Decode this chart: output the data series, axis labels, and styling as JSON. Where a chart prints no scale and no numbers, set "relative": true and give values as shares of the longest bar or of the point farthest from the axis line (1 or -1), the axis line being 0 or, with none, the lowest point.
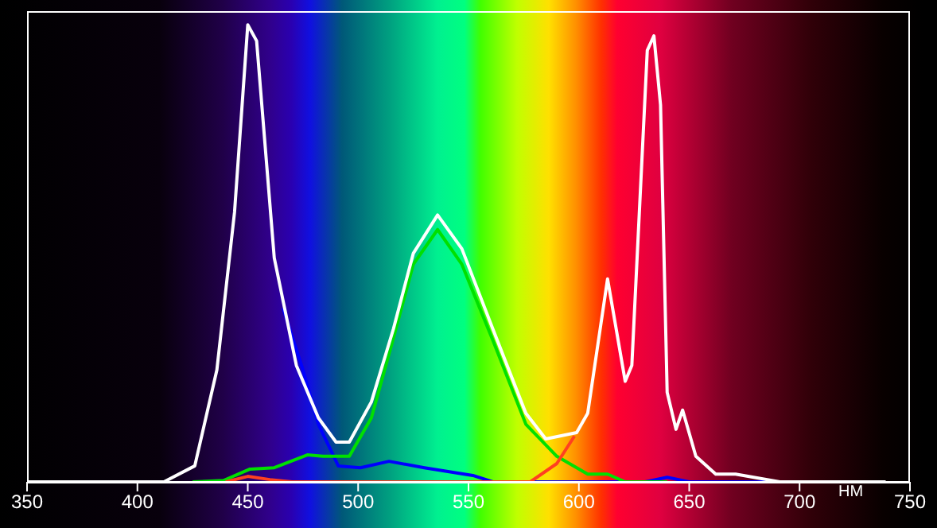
{
  "chart_data": {
    "type": "line",
    "relative": true,
    "xlabel": "НМ",
    "xlim": [
      350,
      750
    ],
    "xticks": [
      350,
      400,
      450,
      500,
      550,
      600,
      650,
      700,
      750
    ],
    "marker": "none",
    "line_style": "solid",
    "series": [
      {
        "color": "#0000ff",
        "x": [
          466,
          475,
          482,
          491,
          501,
          514,
          530,
          552,
          561,
          600,
          630,
          640,
          650,
          705
        ],
        "values": [
          0.38,
          0.245,
          0.126,
          0.035,
          0.031,
          0.045,
          0.031,
          0.014,
          0,
          0,
          0,
          0.01,
          0,
          0
        ]
      },
      {
        "color": "#00e000",
        "x": [
          425,
          439,
          451,
          462,
          477,
          484,
          496,
          506,
          516,
          525,
          536,
          547,
          561,
          576,
          590,
          604,
          613,
          621,
          640
        ],
        "values": [
          0,
          0.003,
          0.028,
          0.031,
          0.059,
          0.056,
          0.056,
          0.14,
          0.315,
          0.476,
          0.552,
          0.476,
          0.31,
          0.126,
          0.056,
          0.017,
          0.017,
          0,
          0
        ]
      },
      {
        "color": "#ff4020",
        "x": [
          440,
          450,
          460,
          470,
          578,
          590,
          598
        ],
        "values": [
          0,
          0.012,
          0.005,
          0,
          0,
          0.04,
          0.1
        ]
      },
      {
        "color": "#ffffff",
        "x": [
          350,
          412,
          426,
          436,
          444,
          450,
          454,
          462,
          472,
          482,
          490,
          496,
          506,
          516,
          525,
          536,
          547,
          561,
          576,
          585,
          599,
          604,
          613,
          621,
          624,
          631,
          634,
          637,
          640,
          644,
          647,
          653,
          662,
          671,
          691,
          739
        ],
        "values": [
          0,
          0,
          0.035,
          0.245,
          0.59,
          1,
          0.965,
          0.49,
          0.255,
          0.14,
          0.087,
          0.087,
          0.175,
          0.335,
          0.5,
          0.584,
          0.51,
          0.335,
          0.15,
          0.094,
          0.108,
          0.15,
          0.444,
          0.22,
          0.255,
          0.944,
          0.976,
          0.825,
          0.196,
          0.115,
          0.157,
          0.056,
          0.017,
          0.017,
          0,
          0
        ]
      }
    ]
  }
}
